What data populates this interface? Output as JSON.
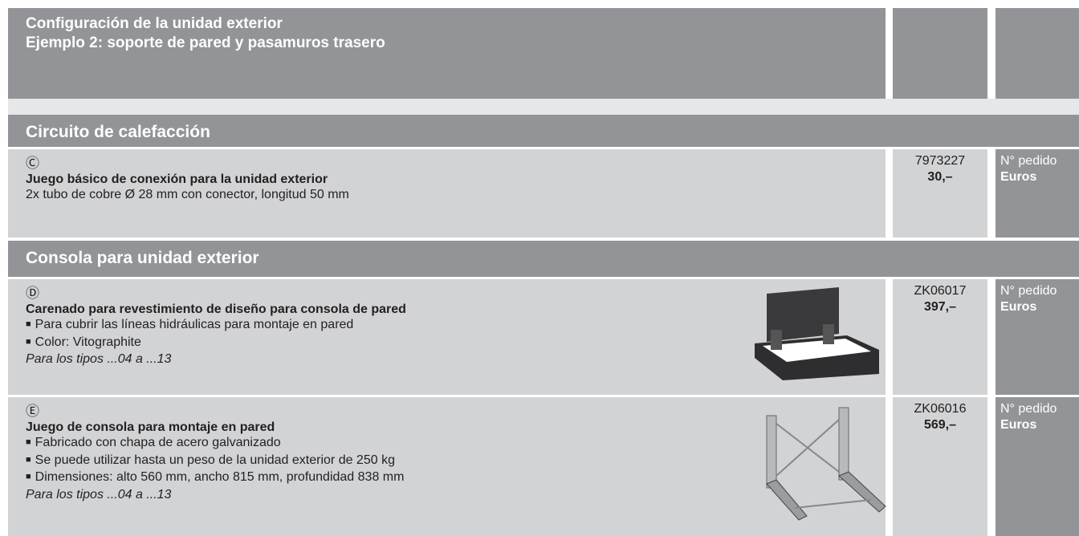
{
  "header": {
    "title": [
      "Configuración de la unidad exterior",
      "Ejemplo 2: soporte de pared y pasamuros trasero"
    ]
  },
  "sections": [
    {
      "title": "Circuito de calefacción",
      "rows": [
        {
          "symbol": "Ⓒ",
          "title": "Juego básico de conexión para la unidad exterior",
          "lines": [
            "2x tubo de cobre Ø 28 mm con conector, longitud 50 mm"
          ],
          "bullets": [],
          "note": null,
          "code": "7973227",
          "price": "30,–",
          "order_label": "N° pedido",
          "currency": "Euros"
        }
      ]
    },
    {
      "title": "Consola para unidad exterior",
      "rows": [
        {
          "symbol": "Ⓓ",
          "title": "Carenado para revestimiento de diseño para consola de pared",
          "lines": [],
          "bullets": [
            "Para cubrir las líneas hidráulicas para montaje en pared",
            "Color: Vitographite"
          ],
          "note": "Para los tipos ...04 a ...13",
          "code": "ZK06017",
          "price": "397,–",
          "order_label": "N° pedido",
          "currency": "Euros"
        },
        {
          "symbol": "Ⓔ",
          "title": "Juego de consola para montaje en pared",
          "lines": [],
          "bullets": [
            "Fabricado con chapa de acero galvanizado",
            "Se puede utilizar hasta un peso de la unidad exterior de 250 kg",
            "Dimensiones: alto 560 mm, ancho 815 mm, profundidad 838 mm"
          ],
          "note": "Para los tipos ...04 a ...13",
          "code": "ZK06016",
          "price": "569,–",
          "order_label": "N° pedido",
          "currency": "Euros"
        }
      ]
    }
  ]
}
